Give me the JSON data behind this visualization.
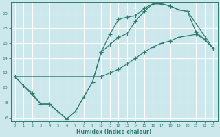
{
  "xlabel": "Humidex (Indice chaleur)",
  "bg_color": "#cce8ec",
  "grid_color": "#ffffff",
  "line_color": "#2e7d6e",
  "xlim": [
    -0.5,
    23.5
  ],
  "ylim": [
    5.5,
    21.5
  ],
  "xticks": [
    0,
    1,
    2,
    3,
    4,
    5,
    6,
    7,
    8,
    9,
    10,
    11,
    12,
    13,
    14,
    15,
    16,
    17,
    18,
    19,
    20,
    21,
    22,
    23
  ],
  "yticks": [
    6,
    8,
    10,
    12,
    14,
    16,
    18,
    20
  ],
  "line1_x": [
    0,
    1,
    2,
    3,
    4,
    5,
    6,
    7,
    8,
    9,
    10,
    11,
    12,
    13,
    14,
    15,
    16,
    17,
    18,
    19,
    20,
    21,
    22,
    23
  ],
  "line1_y": [
    11.5,
    10.3,
    9.3,
    7.8,
    7.8,
    6.8,
    5.8,
    6.8,
    8.8,
    10.8,
    14.8,
    17.2,
    19.2,
    19.5,
    19.7,
    20.7,
    21.3,
    21.3,
    21.0,
    20.5,
    20.3,
    17.5,
    16.5,
    15.3
  ],
  "line2_x": [
    0,
    10,
    11,
    12,
    13,
    14,
    15,
    16,
    17,
    18,
    19,
    20,
    21,
    22,
    23
  ],
  "line2_y": [
    11.5,
    11.5,
    12.0,
    12.5,
    13.2,
    14.0,
    14.8,
    15.5,
    16.0,
    16.3,
    16.8,
    17.0,
    17.2,
    16.5,
    15.3
  ],
  "line3_x": [
    0,
    3,
    4,
    5,
    6,
    7,
    8,
    9,
    10,
    11,
    12,
    13,
    14,
    15,
    16,
    17,
    18,
    19,
    20,
    23
  ],
  "line3_y": [
    11.5,
    7.8,
    7.8,
    6.8,
    5.8,
    6.8,
    8.8,
    10.8,
    14.8,
    15.8,
    16.8,
    17.3,
    19.0,
    20.3,
    21.3,
    21.3,
    21.0,
    20.5,
    20.3,
    15.3
  ]
}
